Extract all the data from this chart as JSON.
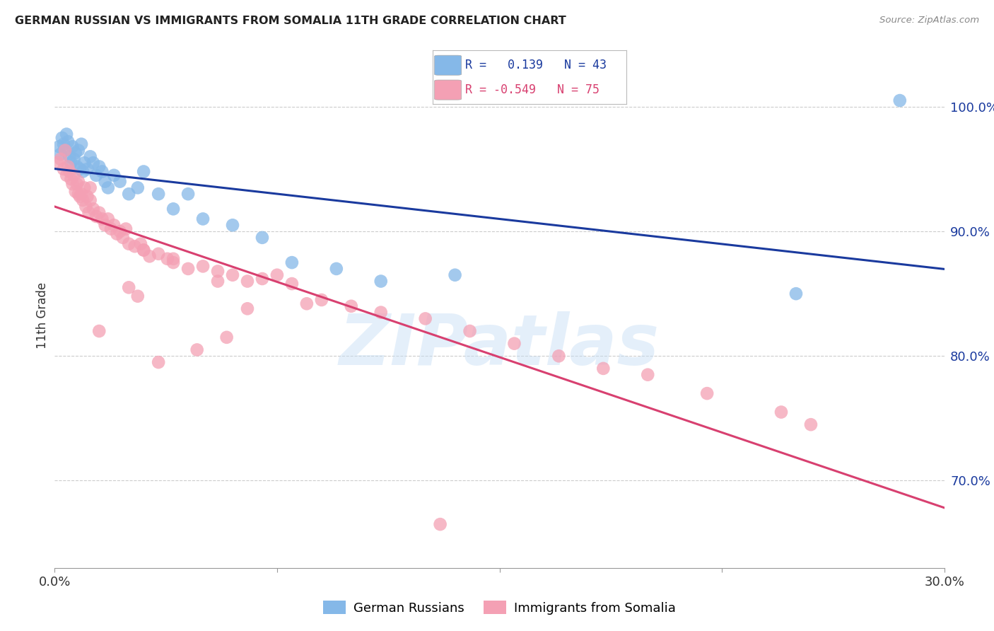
{
  "title": "GERMAN RUSSIAN VS IMMIGRANTS FROM SOMALIA 11TH GRADE CORRELATION CHART",
  "source": "Source: ZipAtlas.com",
  "ylabel": "11th Grade",
  "x_range": [
    0.0,
    30.0
  ],
  "y_range": [
    63.0,
    103.5
  ],
  "y_ticks": [
    70.0,
    80.0,
    90.0,
    100.0
  ],
  "y_tick_labels": [
    "70.0%",
    "80.0%",
    "90.0%",
    "100.0%"
  ],
  "blue_R": 0.139,
  "blue_N": 43,
  "pink_R": -0.549,
  "pink_N": 75,
  "blue_color": "#85b8e8",
  "pink_color": "#f4a0b4",
  "blue_line_color": "#1a3a9e",
  "pink_line_color": "#d84070",
  "watermark_text": "ZIPatlas",
  "legend_label_blue": "German Russians",
  "legend_label_pink": "Immigrants from Somalia",
  "blue_scatter_x": [
    0.15,
    0.2,
    0.25,
    0.3,
    0.35,
    0.4,
    0.45,
    0.5,
    0.55,
    0.6,
    0.65,
    0.7,
    0.75,
    0.8,
    0.85,
    0.9,
    0.95,
    1.0,
    1.1,
    1.2,
    1.3,
    1.4,
    1.5,
    1.6,
    1.7,
    1.8,
    2.0,
    2.2,
    2.5,
    2.8,
    3.0,
    3.5,
    4.0,
    5.0,
    6.0,
    7.0,
    8.0,
    9.5,
    11.0,
    13.5,
    25.0,
    28.5,
    4.5
  ],
  "blue_scatter_y": [
    96.8,
    96.2,
    97.5,
    97.0,
    96.5,
    97.8,
    97.2,
    96.0,
    95.5,
    96.8,
    95.8,
    96.3,
    95.2,
    96.5,
    95.0,
    97.0,
    94.8,
    95.5,
    95.0,
    96.0,
    95.5,
    94.5,
    95.2,
    94.8,
    94.0,
    93.5,
    94.5,
    94.0,
    93.0,
    93.5,
    94.8,
    93.0,
    91.8,
    91.0,
    90.5,
    89.5,
    87.5,
    87.0,
    86.0,
    86.5,
    85.0,
    100.5,
    93.0
  ],
  "pink_scatter_x": [
    0.1,
    0.2,
    0.3,
    0.35,
    0.4,
    0.45,
    0.5,
    0.55,
    0.6,
    0.65,
    0.7,
    0.75,
    0.8,
    0.85,
    0.9,
    0.95,
    1.0,
    1.05,
    1.1,
    1.15,
    1.2,
    1.3,
    1.4,
    1.5,
    1.6,
    1.7,
    1.8,
    1.9,
    2.0,
    2.1,
    2.2,
    2.3,
    2.4,
    2.5,
    2.7,
    2.9,
    3.0,
    3.2,
    3.5,
    3.8,
    4.0,
    4.5,
    5.0,
    5.5,
    6.0,
    6.5,
    7.0,
    7.5,
    8.0,
    9.0,
    10.0,
    11.0,
    12.5,
    14.0,
    15.5,
    17.0,
    18.5,
    20.0,
    22.0,
    24.5,
    25.5,
    2.5,
    3.0,
    4.0,
    5.5,
    6.5,
    8.5,
    3.5,
    4.8,
    5.8,
    1.5,
    2.8,
    0.8,
    1.2,
    13.0
  ],
  "pink_scatter_y": [
    95.5,
    95.8,
    95.0,
    96.5,
    94.5,
    95.2,
    94.8,
    94.2,
    93.8,
    94.5,
    93.2,
    93.8,
    94.0,
    92.8,
    93.0,
    92.5,
    93.5,
    92.0,
    92.8,
    91.5,
    92.5,
    91.8,
    91.2,
    91.5,
    91.0,
    90.5,
    91.0,
    90.2,
    90.5,
    89.8,
    90.0,
    89.5,
    90.2,
    89.0,
    88.8,
    89.0,
    88.5,
    88.0,
    88.2,
    87.8,
    87.5,
    87.0,
    87.2,
    86.8,
    86.5,
    86.0,
    86.2,
    86.5,
    85.8,
    84.5,
    84.0,
    83.5,
    83.0,
    82.0,
    81.0,
    80.0,
    79.0,
    78.5,
    77.0,
    75.5,
    74.5,
    85.5,
    88.5,
    87.8,
    86.0,
    83.8,
    84.2,
    79.5,
    80.5,
    81.5,
    82.0,
    84.8,
    93.0,
    93.5,
    66.5
  ]
}
